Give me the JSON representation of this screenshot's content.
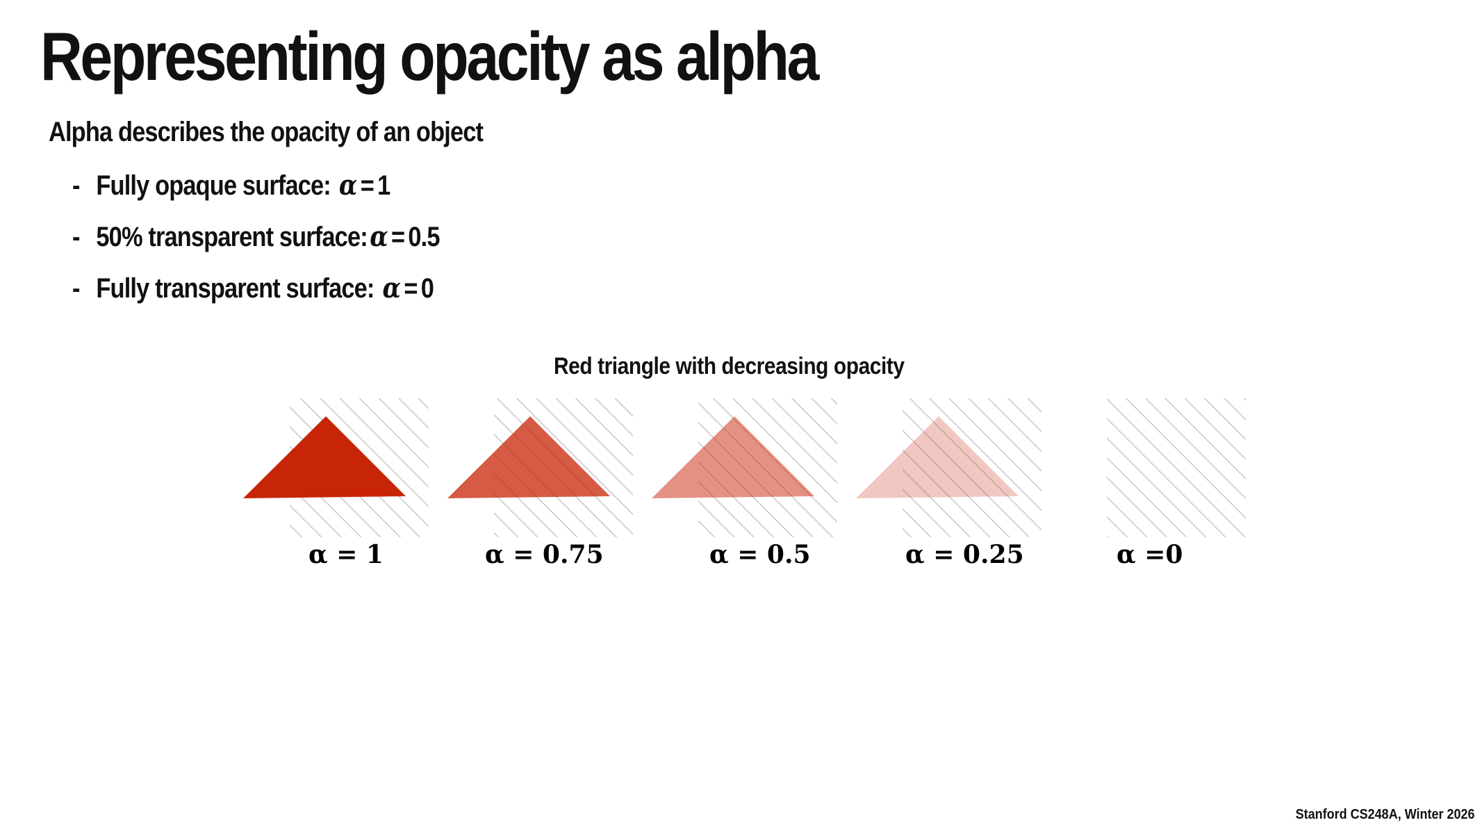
{
  "slide": {
    "title": "Representing opacity as alpha",
    "subtitle": "Alpha describes the opacity of an object",
    "bullets": [
      {
        "dash": "-",
        "text": "Fully opaque surface:",
        "symbol": "α",
        "eq": "=",
        "value": "1"
      },
      {
        "dash": "-",
        "text": "50% transparent surface:",
        "symbol": "α",
        "eq": "=",
        "value": "0.5"
      },
      {
        "dash": "-",
        "text": "Fully transparent surface:",
        "symbol": "α",
        "eq": "=",
        "value": "0"
      }
    ],
    "figure": {
      "caption": "Red triangle with decreasing opacity",
      "triangle_color": "#c82406",
      "hatch_color": "#c8c8c8",
      "panels": [
        {
          "alpha": 1,
          "label": "α = 1"
        },
        {
          "alpha": 0.75,
          "label": "α = 0.75"
        },
        {
          "alpha": 0.5,
          "label": "α = 0.5"
        },
        {
          "alpha": 0.25,
          "label": "α = 0.25"
        },
        {
          "alpha": 0,
          "label": "α =0"
        }
      ]
    },
    "footer": "Stanford CS248A, Winter 2026"
  }
}
